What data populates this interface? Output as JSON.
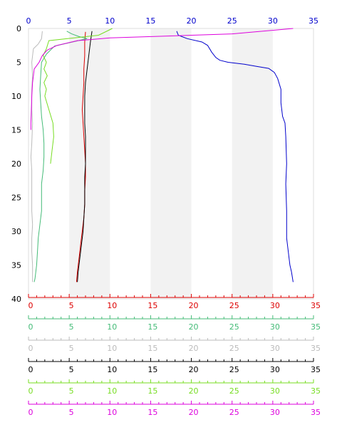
{
  "chart_data": {
    "type": "line",
    "title": "",
    "orientation": "depth-profile (y axis reversed, depth increases downward)",
    "x_range": [
      0,
      35
    ],
    "y_range": [
      0,
      40
    ],
    "y_reversed": true,
    "grid": "alternating light grey vertical bands every 5 units",
    "top_axis": {
      "color": "#0000cc",
      "ticks": [
        "0",
        "5",
        "10",
        "15",
        "20",
        "25",
        "30",
        "35"
      ],
      "tick_values": [
        0,
        5,
        10,
        15,
        20,
        25,
        30,
        35
      ]
    },
    "left_axis": {
      "color": "#000000",
      "ticks": [
        "0",
        "5",
        "10",
        "15",
        "20",
        "25",
        "30",
        "35",
        "40"
      ],
      "tick_values": [
        0,
        5,
        10,
        15,
        20,
        25,
        30,
        35,
        40
      ]
    },
    "bottom_axes": [
      {
        "color": "#dd0000",
        "ticks": [
          "0",
          "5",
          "10",
          "15",
          "20",
          "25",
          "30",
          "35"
        ]
      },
      {
        "color": "#44bb77",
        "ticks": [
          "0",
          "5",
          "10",
          "15",
          "20",
          "25",
          "30",
          "35"
        ]
      },
      {
        "color": "#bbbbbb",
        "ticks": [
          "0",
          "5",
          "10",
          "15",
          "20",
          "25",
          "30",
          "35"
        ]
      },
      {
        "color": "#000000",
        "ticks": [
          "0",
          "5",
          "10",
          "15",
          "20",
          "25",
          "30",
          "35"
        ]
      },
      {
        "color": "#77dd22",
        "ticks": [
          "0",
          "5",
          "10",
          "15",
          "20",
          "25",
          "30",
          "35"
        ]
      },
      {
        "color": "#dd00dd",
        "ticks": [
          "0",
          "5",
          "10",
          "15",
          "20",
          "25",
          "30",
          "35"
        ]
      }
    ],
    "series": [
      {
        "color": "#0000cc",
        "points": [
          [
            18.2,
            0.4
          ],
          [
            18.4,
            1.0
          ],
          [
            19.5,
            1.5
          ],
          [
            21.3,
            2.0
          ],
          [
            22,
            2.5
          ],
          [
            22.5,
            3.5
          ],
          [
            23,
            4.3
          ],
          [
            23.5,
            4.7
          ],
          [
            24.5,
            5.0
          ],
          [
            26.5,
            5.3
          ],
          [
            28,
            5.6
          ],
          [
            29.5,
            5.9
          ],
          [
            30.2,
            6.5
          ],
          [
            30.6,
            7.4
          ],
          [
            31,
            9
          ],
          [
            31,
            11
          ],
          [
            31.2,
            13
          ],
          [
            31.5,
            14
          ],
          [
            31.6,
            16
          ],
          [
            31.7,
            20
          ],
          [
            31.6,
            23
          ],
          [
            31.7,
            27
          ],
          [
            31.7,
            31
          ],
          [
            31.9,
            33
          ],
          [
            32.1,
            35
          ],
          [
            32.3,
            36
          ],
          [
            32.5,
            37.5
          ]
        ]
      },
      {
        "color": "#dd0000",
        "points": [
          [
            7.0,
            0.5
          ],
          [
            6.9,
            2
          ],
          [
            6.9,
            4
          ],
          [
            6.8,
            6
          ],
          [
            6.8,
            8
          ],
          [
            6.7,
            10
          ],
          [
            6.6,
            12
          ],
          [
            6.7,
            14
          ],
          [
            6.8,
            16
          ],
          [
            6.9,
            18
          ],
          [
            7.0,
            20
          ],
          [
            7.0,
            22
          ],
          [
            6.9,
            24
          ],
          [
            6.9,
            26
          ],
          [
            6.8,
            28
          ],
          [
            6.6,
            30
          ],
          [
            6.4,
            32
          ],
          [
            6.2,
            34
          ],
          [
            6.0,
            36
          ],
          [
            5.9,
            37.5
          ]
        ]
      },
      {
        "color": "#000000",
        "points": [
          [
            7.8,
            0.4
          ],
          [
            7.6,
            2
          ],
          [
            7.4,
            4
          ],
          [
            7.2,
            6
          ],
          [
            7.0,
            8
          ],
          [
            6.9,
            10
          ],
          [
            6.9,
            12
          ],
          [
            6.9,
            14
          ],
          [
            7.0,
            16
          ],
          [
            7.0,
            18
          ],
          [
            7.0,
            20
          ],
          [
            6.9,
            22
          ],
          [
            6.9,
            24
          ],
          [
            6.9,
            26
          ],
          [
            6.8,
            28
          ],
          [
            6.7,
            30
          ],
          [
            6.5,
            32
          ],
          [
            6.3,
            34
          ],
          [
            6.1,
            36
          ],
          [
            6.0,
            37.5
          ]
        ]
      },
      {
        "color": "#44bb77",
        "points": [
          [
            4.7,
            0.4
          ],
          [
            5.3,
            0.8
          ],
          [
            6.2,
            1.2
          ],
          [
            7.2,
            1.5
          ],
          [
            3.2,
            2.6
          ],
          [
            2.2,
            3.8
          ],
          [
            1.6,
            5
          ],
          [
            1.5,
            7
          ],
          [
            1.4,
            9
          ],
          [
            1.5,
            11
          ],
          [
            1.6,
            13
          ],
          [
            1.8,
            15
          ],
          [
            1.9,
            17
          ],
          [
            1.9,
            19
          ],
          [
            1.8,
            21
          ],
          [
            1.6,
            23
          ],
          [
            1.6,
            25
          ],
          [
            1.6,
            27
          ],
          [
            1.4,
            29
          ],
          [
            1.2,
            31
          ],
          [
            1.1,
            33
          ],
          [
            1.0,
            35
          ],
          [
            0.8,
            37
          ],
          [
            0.7,
            37.5
          ]
        ]
      },
      {
        "color": "#bbbbbb",
        "points": [
          [
            1.7,
            0.4
          ],
          [
            1.6,
            1.5
          ],
          [
            1.2,
            2.3
          ],
          [
            0.6,
            3
          ],
          [
            0.4,
            5
          ],
          [
            0.5,
            7
          ],
          [
            0.4,
            9
          ],
          [
            0.4,
            12
          ],
          [
            0.5,
            14
          ],
          [
            0.4,
            17
          ],
          [
            0.3,
            19
          ],
          [
            0.4,
            21
          ],
          [
            0.4,
            23
          ],
          [
            0.4,
            25
          ],
          [
            0.4,
            27
          ],
          [
            0.5,
            29
          ],
          [
            0.4,
            31
          ],
          [
            0.4,
            33
          ],
          [
            0.5,
            35
          ],
          [
            0.5,
            37.5
          ]
        ]
      },
      {
        "color": "#77dd22",
        "points": [
          [
            10.3,
            0
          ],
          [
            8.6,
            1
          ],
          [
            6.3,
            1.3
          ],
          [
            2.5,
            1.8
          ],
          [
            2.2,
            3
          ],
          [
            1.8,
            4
          ],
          [
            2.2,
            5
          ],
          [
            1.9,
            6
          ],
          [
            2.3,
            7
          ],
          [
            1.9,
            8
          ],
          [
            2.2,
            9
          ],
          [
            2.0,
            10
          ],
          [
            2.5,
            12
          ],
          [
            3.0,
            14
          ],
          [
            3.1,
            16
          ],
          [
            2.9,
            18
          ],
          [
            2.7,
            20
          ]
        ]
      },
      {
        "color": "#dd00dd",
        "points": [
          [
            32.5,
            0
          ],
          [
            25,
            0.8
          ],
          [
            10,
            1.4
          ],
          [
            6,
            1.8
          ],
          [
            3.5,
            2.5
          ],
          [
            2.3,
            3.2
          ],
          [
            1.7,
            4
          ],
          [
            1.3,
            5
          ],
          [
            0.7,
            6
          ],
          [
            0.6,
            7
          ],
          [
            0.5,
            8
          ],
          [
            0.4,
            10
          ],
          [
            0.35,
            12
          ],
          [
            0.3,
            14
          ],
          [
            0.3,
            15
          ]
        ]
      }
    ]
  }
}
